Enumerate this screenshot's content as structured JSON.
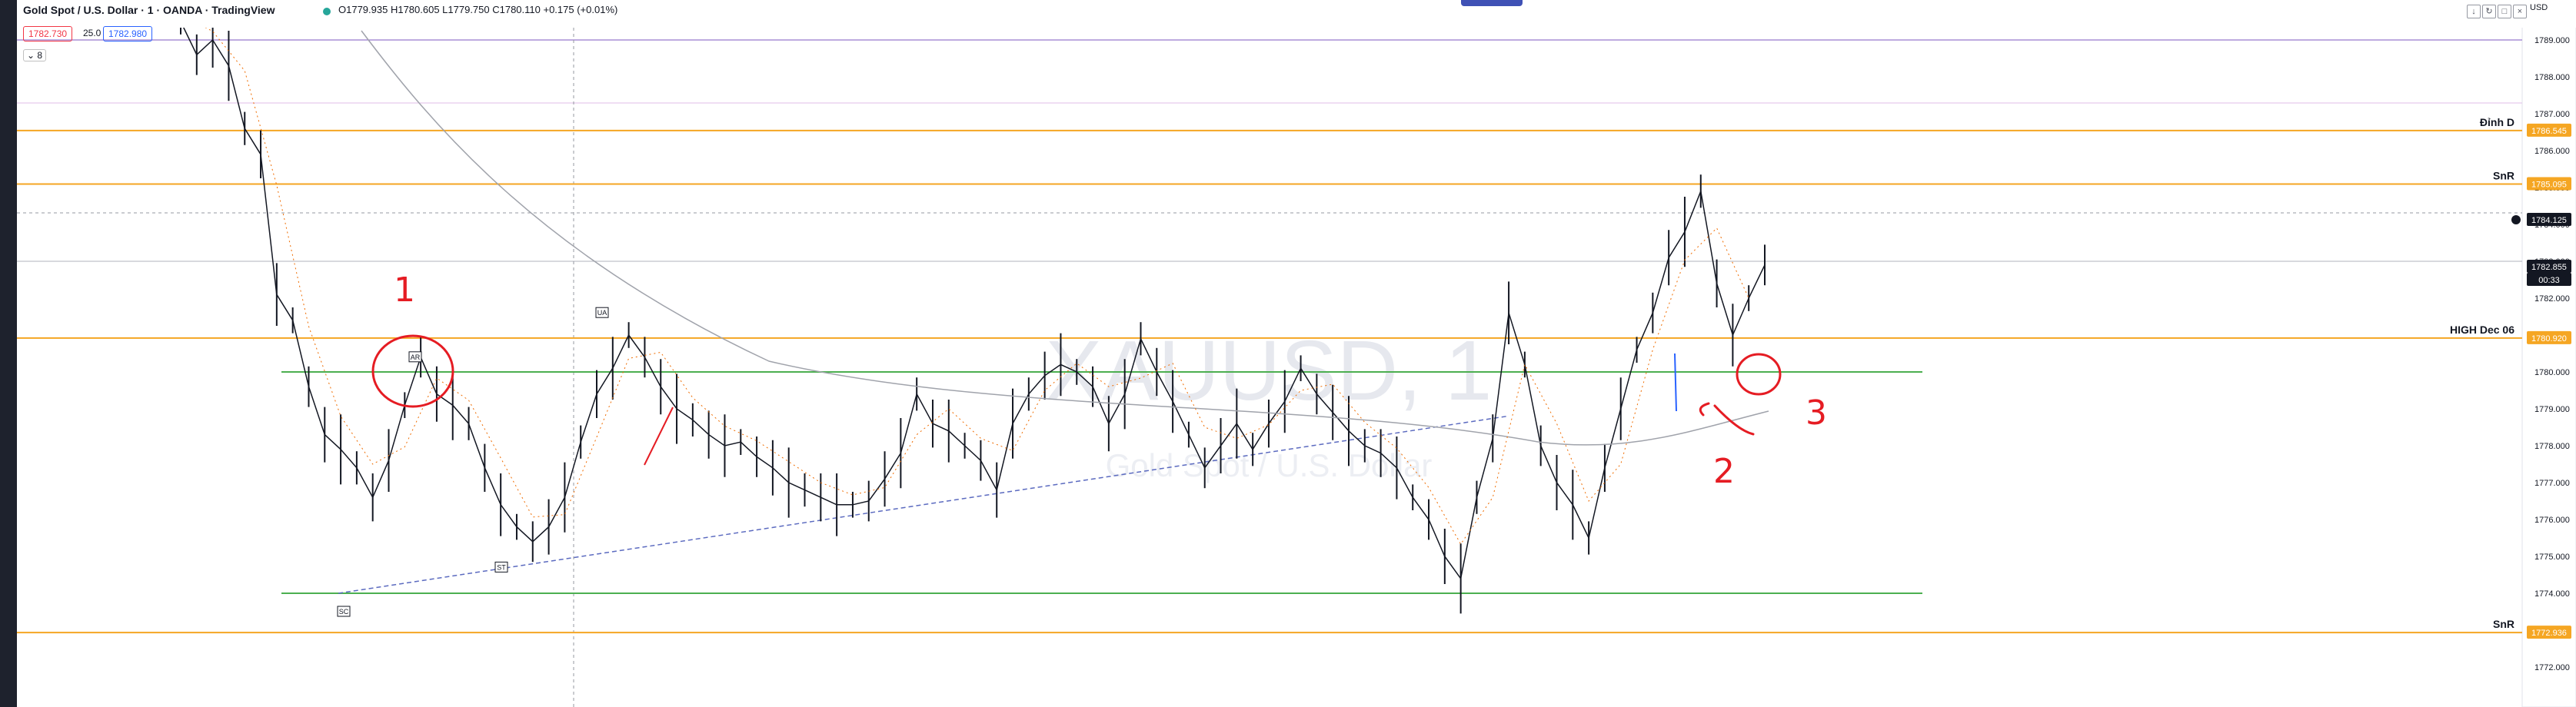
{
  "header": {
    "symbol_title": "Gold Spot / U.S. Dollar · 1 · OANDA · TradingView",
    "ohlc": "O1779.935 H1780.605 L1779.750 C1780.110 +0.175 (+0.01%)",
    "bid": "1782.730",
    "spread": "25.0",
    "ask": "1782.980",
    "indicator_toggle": "8",
    "currency": "USD"
  },
  "window_buttons": [
    "↓",
    "↻",
    "□",
    "×"
  ],
  "price_axis": {
    "min": 1772.0,
    "max": 1789.0,
    "ticks": [
      "1789.000",
      "1788.000",
      "1787.000",
      "1786.000",
      "1785.000",
      "1784.000",
      "1783.000",
      "1782.000",
      "1781.000",
      "1780.000",
      "1779.000",
      "1778.000",
      "1777.000",
      "1776.000",
      "1775.000",
      "1774.000",
      "1773.000",
      "1772.000"
    ],
    "badges": [
      {
        "label": "1786.545",
        "value": 1786.545,
        "color": "#f5a623"
      },
      {
        "label": "1785.095",
        "value": 1785.095,
        "color": "#f5a623"
      },
      {
        "label": "1784.125",
        "value": 1784.125,
        "color": "#131722"
      },
      {
        "label": "1782.855",
        "value": 1782.855,
        "color": "#131722"
      },
      {
        "label": "00:33",
        "value": 1782.5,
        "color": "#131722"
      },
      {
        "label": "1780.920",
        "value": 1780.92,
        "color": "#f5a623"
      },
      {
        "label": "1772.936",
        "value": 1772.936,
        "color": "#f5a623"
      }
    ]
  },
  "levels": [
    {
      "label": "Đỉnh D",
      "value": 1786.545,
      "color": "#f5a623"
    },
    {
      "label": "SnR",
      "value": 1785.095,
      "color": "#f5a623"
    },
    {
      "label": "HIGH Dec 06",
      "value": 1780.92,
      "color": "#f5a623"
    },
    {
      "label": "SnR",
      "value": 1772.936,
      "color": "#f5a623"
    }
  ],
  "range_lines": {
    "upper": 1780.0,
    "lower": 1774.0,
    "color": "#4caf50"
  },
  "watermark": {
    "symbol": "XAUUSD, 1",
    "sub": "Gold Spot / U.S. Dollar"
  },
  "event_labels": [
    {
      "label": "AR",
      "value": 1780.4
    },
    {
      "label": "UA",
      "value": 1781.6
    },
    {
      "label": "ST",
      "value": 1774.7
    },
    {
      "label": "SC",
      "value": 1773.5
    }
  ],
  "annotations": [
    "1",
    "2",
    "3"
  ],
  "chart_data": {
    "type": "line",
    "title": "",
    "ylim": [
      1772.0,
      1789.0
    ],
    "series": [
      {
        "values": [
          1789.5,
          1788.6,
          1789.0,
          1788.3,
          1786.6,
          1785.9,
          1782.1,
          1781.4,
          1779.6,
          1778.3,
          1777.9,
          1777.4,
          1776.6,
          1777.6,
          1779.1,
          1780.4,
          1779.4,
          1779.1,
          1778.6,
          1777.4,
          1776.4,
          1775.8,
          1775.4,
          1775.8,
          1776.6,
          1778.1,
          1779.4,
          1780.1,
          1781.0,
          1780.4,
          1779.6,
          1779.0,
          1778.7,
          1778.3,
          1778.0,
          1778.1,
          1777.7,
          1777.4,
          1777.0,
          1776.8,
          1776.6,
          1776.4,
          1776.4,
          1776.5,
          1777.1,
          1777.8,
          1779.4,
          1778.6,
          1778.4,
          1778.0,
          1777.6,
          1776.8,
          1778.6,
          1779.4,
          1779.9,
          1780.2,
          1780.0,
          1779.6,
          1778.6,
          1779.4,
          1780.9,
          1780.0,
          1779.2,
          1778.3,
          1777.4,
          1778.0,
          1778.6,
          1777.9,
          1778.6,
          1779.2,
          1780.1,
          1779.4,
          1778.9,
          1778.4,
          1778.0,
          1777.8,
          1777.4,
          1776.6,
          1776.0,
          1775.0,
          1774.4,
          1776.6,
          1778.2,
          1781.6,
          1780.2,
          1778.0,
          1777.0,
          1776.4,
          1775.5,
          1777.4,
          1779.0,
          1780.6,
          1781.6,
          1783.1,
          1783.8,
          1784.9,
          1782.4,
          1781.0,
          1782.0,
          1782.9
        ]
      }
    ]
  }
}
